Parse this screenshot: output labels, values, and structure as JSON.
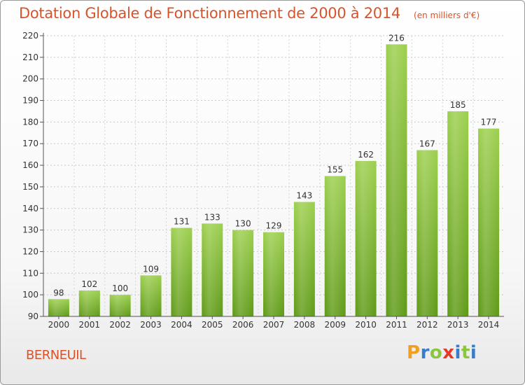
{
  "header": {
    "title": "Dotation Globale de Fonctionnement de 2000 à 2014",
    "unit": "(en milliers d'€)"
  },
  "place": "BERNEUIL",
  "logo": {
    "letters": [
      "P",
      "r",
      "o",
      "x",
      "i",
      "t",
      "i"
    ],
    "colors": [
      "#f0a020",
      "#3a7cc8",
      "#8bc63e",
      "#e8382a",
      "#3a7cc8",
      "#8bc63e",
      "#3a7cc8"
    ]
  },
  "chart_data": {
    "type": "bar",
    "categories": [
      "2000",
      "2001",
      "2002",
      "2003",
      "2004",
      "2005",
      "2006",
      "2007",
      "2008",
      "2009",
      "2010",
      "2011",
      "2012",
      "2013",
      "2014"
    ],
    "values": [
      98,
      102,
      100,
      109,
      131,
      133,
      130,
      129,
      143,
      155,
      162,
      216,
      167,
      185,
      177
    ],
    "title": "Dotation Globale de Fonctionnement de 2000 à 2014",
    "subtitle": "(en milliers d'€)",
    "ylim": [
      90,
      220
    ],
    "yticks": [
      90,
      100,
      110,
      120,
      130,
      140,
      150,
      160,
      170,
      180,
      190,
      200,
      210,
      220
    ],
    "grid": true,
    "colors": {
      "bar_top": "#9ccf4e",
      "bar_bottom": "#5f9a17"
    }
  }
}
